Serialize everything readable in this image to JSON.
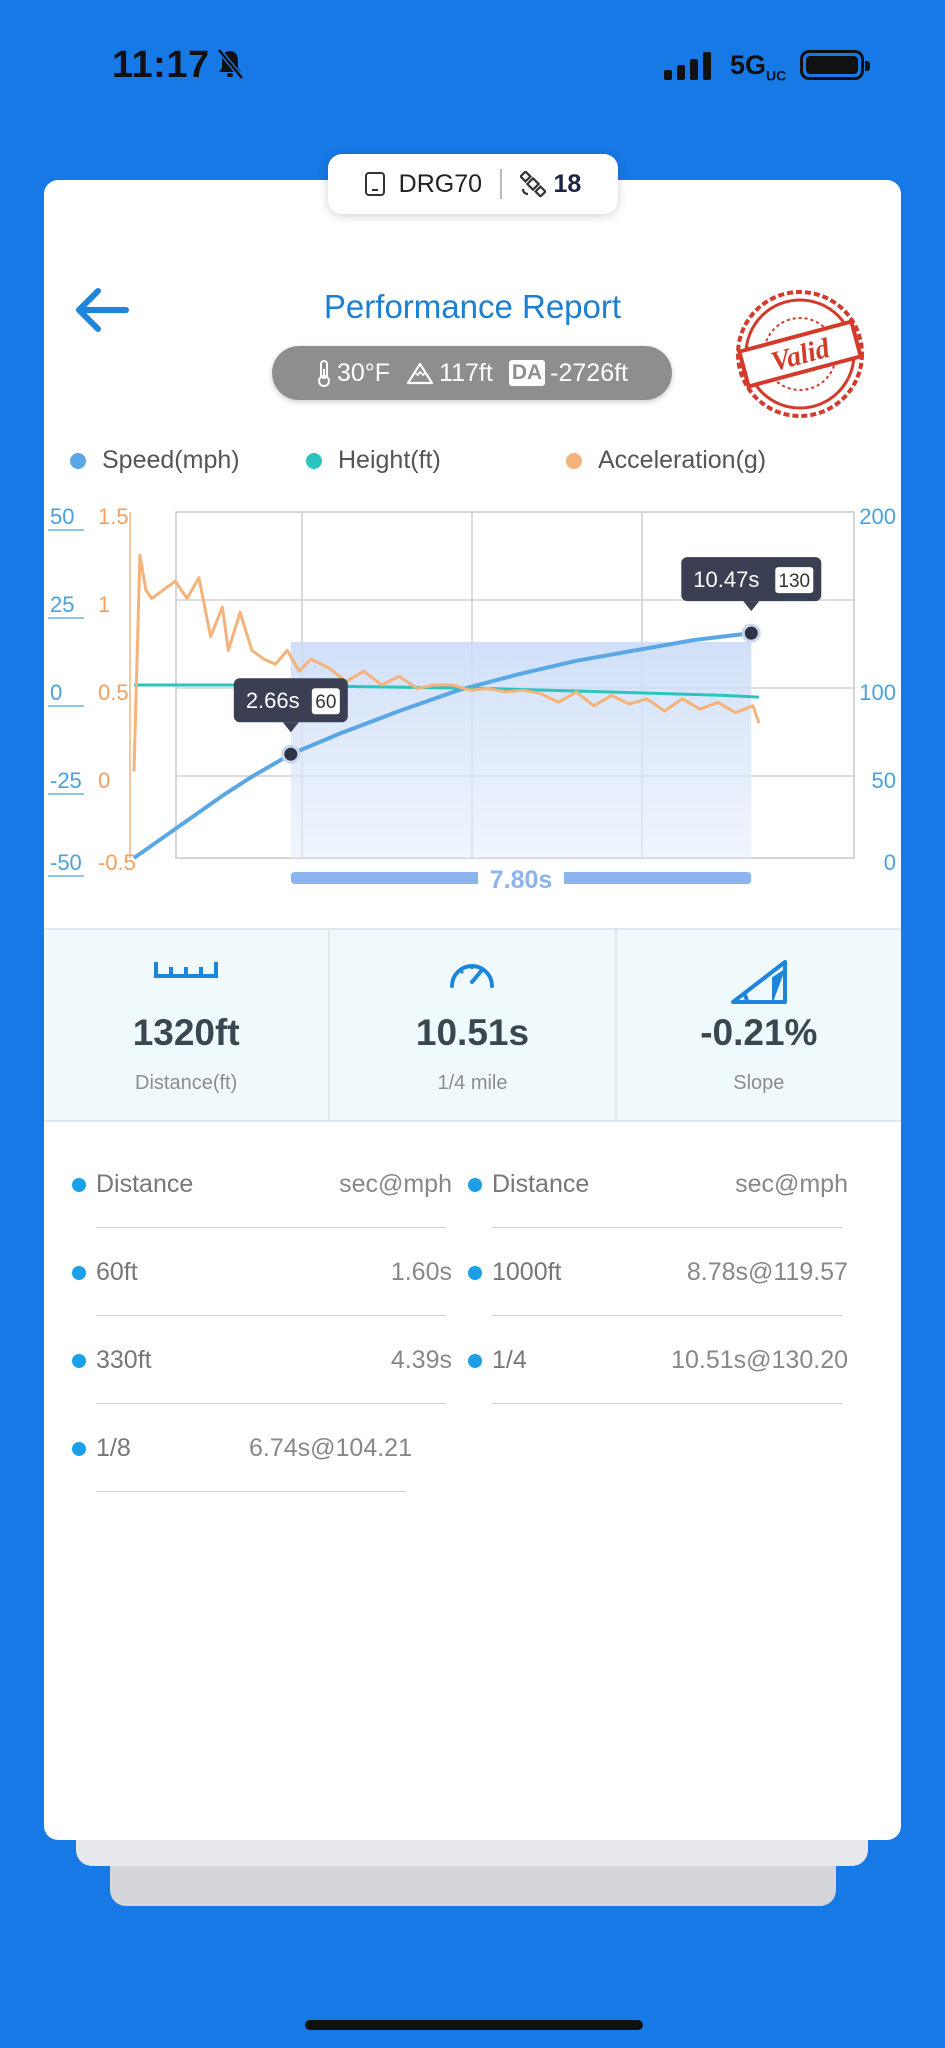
{
  "status": {
    "time": "11:17",
    "network": "5G",
    "network_sub": "UC"
  },
  "device": {
    "name": "DRG70",
    "satellites": "18"
  },
  "header": {
    "title": "Performance Report",
    "stamp": "Valid"
  },
  "conditions": {
    "temperature": "30°F",
    "elevation": "117ft",
    "da_label": "DA",
    "density_altitude": "-2726ft"
  },
  "colors": {
    "speed": "#5aa7e6",
    "height": "#2cc4bf",
    "acceleration": "#f5b27a",
    "accent": "#1d7fd0",
    "stamp": "#d43a2a"
  },
  "chart_data": {
    "type": "line",
    "legend": [
      "Speed(mph)",
      "Height(ft)",
      "Acceleration(g)"
    ],
    "legend_position": "top",
    "xlim": [
      0,
      11.5
    ],
    "axes": {
      "height_left": {
        "ticks": [
          "50",
          "25",
          "0",
          "-25",
          "-50"
        ],
        "range": [
          -50,
          50
        ]
      },
      "accel_left": {
        "ticks": [
          "1.5",
          "1",
          "0.5",
          "0",
          "-0.5"
        ],
        "range": [
          -0.5,
          1.5
        ]
      },
      "speed_right": {
        "ticks": [
          "200",
          "",
          "100",
          "50",
          "0"
        ],
        "range": [
          0,
          200
        ]
      }
    },
    "series": [
      {
        "name": "Speed(mph)",
        "x": [
          0,
          0.5,
          1,
          1.5,
          2,
          2.66,
          3.5,
          4.5,
          5.5,
          6.5,
          7.5,
          8.5,
          9.5,
          10.47,
          10.6
        ],
        "values": [
          0,
          12,
          24,
          36,
          47,
          60,
          72,
          85,
          97,
          106,
          114,
          120,
          126,
          130,
          131
        ]
      },
      {
        "name": "Height(ft)",
        "x": [
          0,
          2,
          4,
          6,
          8,
          10,
          10.6
        ],
        "values": [
          0,
          0,
          -0.5,
          -1,
          -2,
          -3,
          -3.5
        ]
      },
      {
        "name": "Acceleration(g)",
        "x": [
          0,
          0.1,
          0.2,
          0.3,
          0.5,
          0.7,
          0.9,
          1.1,
          1.3,
          1.5,
          1.6,
          1.8,
          2.0,
          2.2,
          2.4,
          2.6,
          2.8,
          3.0,
          3.3,
          3.6,
          3.9,
          4.2,
          4.5,
          4.8,
          5.1,
          5.4,
          5.7,
          6.0,
          6.3,
          6.6,
          6.9,
          7.2,
          7.5,
          7.8,
          8.1,
          8.4,
          8.7,
          9.0,
          9.3,
          9.6,
          9.9,
          10.2,
          10.5,
          10.6
        ],
        "values": [
          0,
          1.25,
          1.05,
          1.0,
          1.05,
          1.1,
          1.0,
          1.12,
          0.78,
          0.95,
          0.7,
          0.92,
          0.7,
          0.65,
          0.62,
          0.7,
          0.58,
          0.65,
          0.6,
          0.52,
          0.58,
          0.5,
          0.55,
          0.48,
          0.5,
          0.5,
          0.47,
          0.48,
          0.46,
          0.47,
          0.45,
          0.4,
          0.46,
          0.38,
          0.44,
          0.39,
          0.42,
          0.35,
          0.42,
          0.36,
          0.4,
          0.34,
          0.38,
          0.28
        ]
      }
    ],
    "markers": [
      {
        "time": "2.66s",
        "speed": "60",
        "x": 2.66,
        "y": 60
      },
      {
        "time": "10.47s",
        "speed": "130",
        "x": 10.47,
        "y": 130
      }
    ],
    "range_selection": {
      "start": 2.66,
      "end": 10.47,
      "label": "7.80s"
    }
  },
  "stats": [
    {
      "value": "1320ft",
      "label": "Distance(ft)",
      "icon": "ruler-icon"
    },
    {
      "value": "10.51s",
      "label": "1/4 mile",
      "icon": "speedometer-icon"
    },
    {
      "value": "-0.21%",
      "label": "Slope",
      "icon": "slope-icon"
    }
  ],
  "splits": {
    "header_key": "Distance",
    "header_value": "sec@mph",
    "left": [
      {
        "distance": "60ft",
        "result": "1.60s"
      },
      {
        "distance": "330ft",
        "result": "4.39s"
      },
      {
        "distance": "1/8",
        "result": "6.74s@104.21"
      }
    ],
    "right": [
      {
        "distance": "1000ft",
        "result": "8.78s@119.57"
      },
      {
        "distance": "1/4",
        "result": "10.51s@130.20"
      }
    ]
  }
}
